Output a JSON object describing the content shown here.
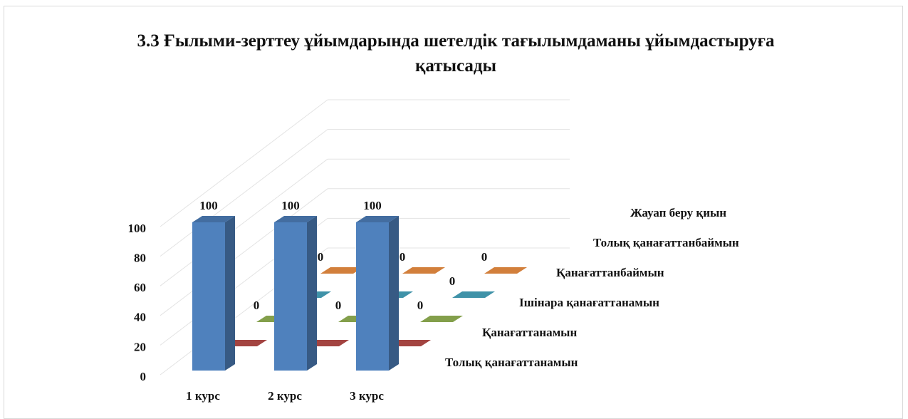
{
  "chart_data": {
    "type": "bar3d",
    "title": "3.3 Ғылыми-зерттеу ұйымдарында шетелдік тағылымдаманы ұйымдастыруға қатысады",
    "categories": [
      "1 курс",
      "2 курс",
      "3 курс"
    ],
    "series": [
      {
        "name": "Толық қанағаттанамын",
        "color": "#4f81bd",
        "values": [
          100,
          100,
          100
        ]
      },
      {
        "name": "Қанағаттанамын",
        "color": "#c0504d",
        "values": [
          0,
          0,
          0
        ]
      },
      {
        "name": "Ішінара қанағаттанамын",
        "color": "#9bbb59",
        "values": [
          0,
          0,
          0
        ]
      },
      {
        "name": "Қанағаттанбаймын",
        "color": "#4bacc6",
        "values": [
          0,
          0,
          0
        ]
      },
      {
        "name": "Толық қанағаттанбаймын",
        "color": "#f79646",
        "values": [
          0,
          0,
          0
        ]
      },
      {
        "name": "Жауап беру қиын",
        "values": [
          null,
          null,
          null
        ]
      }
    ],
    "ylim": [
      0,
      100
    ],
    "yticks": [
      0,
      20,
      40,
      60,
      80,
      100
    ],
    "grid": true
  }
}
